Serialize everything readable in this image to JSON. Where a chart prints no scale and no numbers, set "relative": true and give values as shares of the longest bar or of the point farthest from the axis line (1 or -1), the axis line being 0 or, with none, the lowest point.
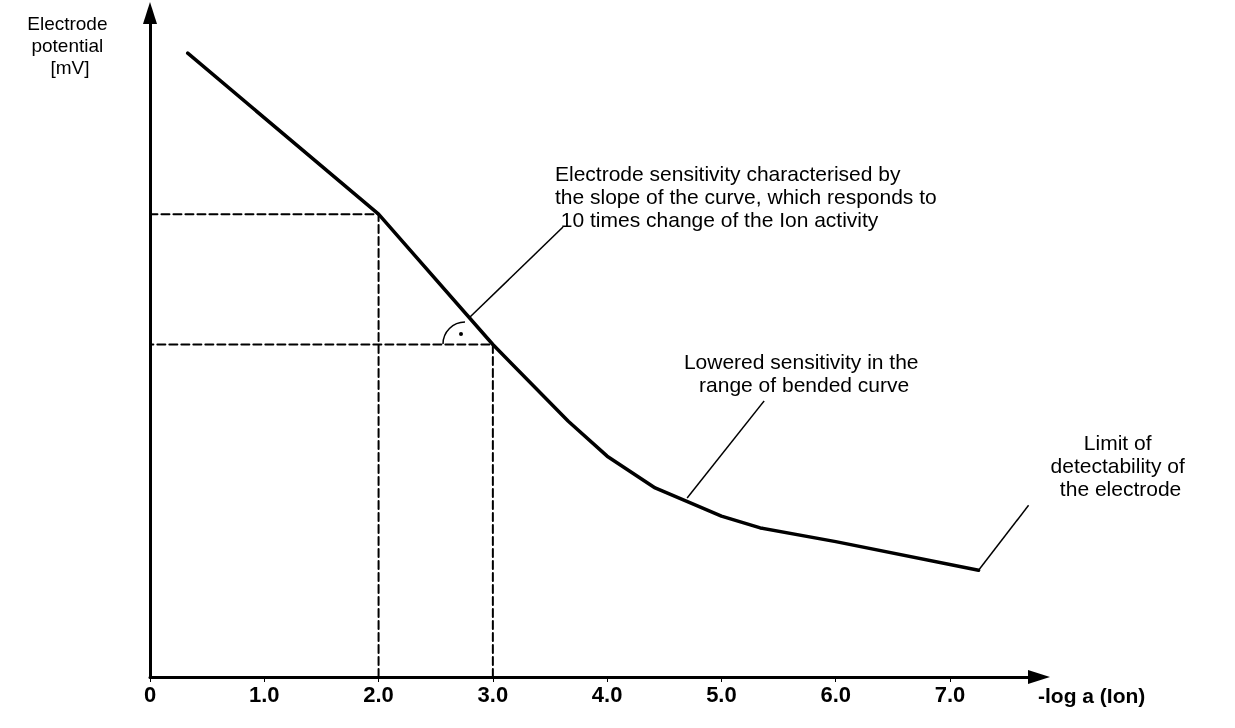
{
  "chart_data": {
    "type": "line",
    "relative": true,
    "marker": "none",
    "xlabel": "-log a (Ion)",
    "ylabel": "Electrode potential [mV]",
    "xlim": [
      0,
      7.7
    ],
    "xticks": [
      0,
      {
        "value": 1,
        "label": "1.0"
      },
      {
        "value": 2,
        "label": "2.0"
      },
      {
        "value": 3,
        "label": "3.0"
      },
      {
        "value": 4,
        "label": "4.0"
      },
      {
        "value": 5,
        "label": "5.0"
      },
      {
        "value": 6,
        "label": "6.0"
      },
      {
        "value": 7,
        "label": "7.0"
      }
    ],
    "series": [
      {
        "color": "#000000",
        "line_style": "solid",
        "x": [
          0.33,
          2.0,
          3.0,
          3.66,
          4.0,
          4.42,
          5.0,
          5.34,
          6.0,
          7.25
        ],
        "values": [
          1.0,
          0.742,
          0.533,
          0.41,
          0.354,
          0.303,
          0.258,
          0.239,
          0.217,
          0.171
        ]
      },
      {
        "color": "#000000",
        "line_style": "dashed",
        "x": [
          2.0,
          2.0,
          0
        ],
        "values": [
          0,
          0.742,
          0.742
        ]
      },
      {
        "color": "#000000",
        "line_style": "dashed",
        "x": [
          3.0,
          3.0,
          0
        ],
        "values": [
          0,
          0.533,
          0.533
        ]
      }
    ],
    "annotations": [
      {
        "text": "Electrode sensitivity characterised by the slope of the curve, which responds to 10 times change of the Ion activity",
        "x": 2.8,
        "y": 0.577
      },
      {
        "text": "Lowered sensitivity in the range of bended curve",
        "x": 4.7,
        "y": 0.287
      },
      {
        "text": "Limit of detectability of the electrode",
        "x": 7.25,
        "y": 0.171
      }
    ]
  }
}
